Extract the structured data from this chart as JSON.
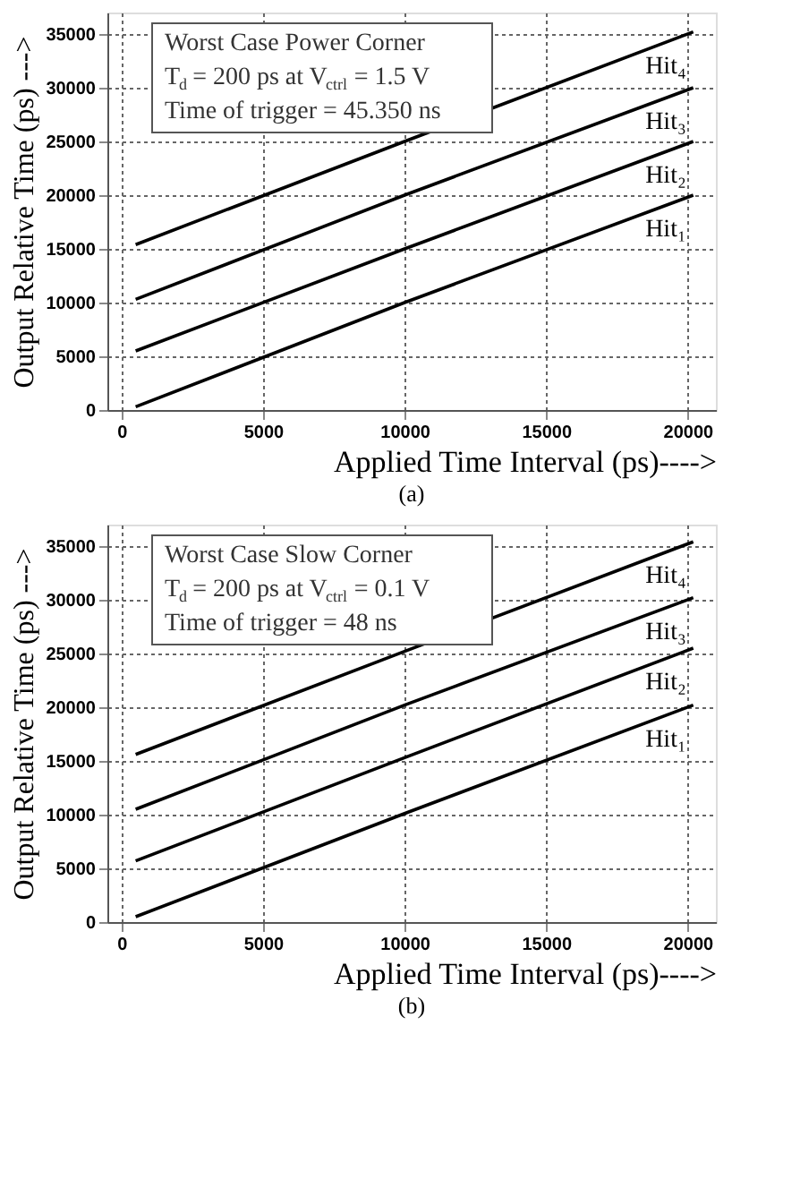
{
  "chart_data": [
    {
      "type": "line",
      "title": "(a)",
      "xlabel": "Applied Time Interval (ps)---->",
      "ylabel": "Output Relative Time (ps) --->",
      "xlim": [
        -500,
        21000
      ],
      "xticks": [
        0,
        5000,
        10000,
        15000,
        20000
      ],
      "ylim": [
        0,
        37000
      ],
      "yticks": [
        0,
        5000,
        10000,
        15000,
        20000,
        25000,
        30000,
        35000
      ],
      "grid": true,
      "legend": false,
      "line_style": "solid",
      "annotations": [
        "Worst Case Power Corner",
        "T$_{d}$ = 200 ps at V$_{ctrl}$ = 1.5 V",
        "Time of trigger = 45.350 ns"
      ],
      "series": [
        {
          "name": "Hit₁",
          "color": "#000000",
          "x": [
            500,
            10000,
            20200
          ],
          "values": [
            300,
            10000,
            20000
          ]
        },
        {
          "name": "Hit₂",
          "color": "#000000",
          "x": [
            500,
            10000,
            20200
          ],
          "values": [
            5500,
            15000,
            25000
          ]
        },
        {
          "name": "Hit₃",
          "color": "#000000",
          "x": [
            500,
            10000,
            20200
          ],
          "values": [
            10300,
            20000,
            30000
          ]
        },
        {
          "name": "Hit₄",
          "color": "#000000",
          "x": [
            500,
            10000,
            20200
          ],
          "values": [
            15400,
            25000,
            35200
          ]
        }
      ]
    },
    {
      "type": "line",
      "title": "(b)",
      "xlabel": "Applied Time Interval (ps)---->",
      "ylabel": "Output Relative Time (ps) --->",
      "xlim": [
        -500,
        21000
      ],
      "xticks": [
        0,
        5000,
        10000,
        15000,
        20000
      ],
      "ylim": [
        0,
        37000
      ],
      "yticks": [
        0,
        5000,
        10000,
        15000,
        20000,
        25000,
        30000,
        35000
      ],
      "grid": true,
      "legend": false,
      "line_style": "solid",
      "annotations": [
        "Worst Case Slow Corner",
        "T$_{d}$ = 200 ps at V$_{ctrl}$ = 0.1 V",
        "Time of trigger = 48 ns"
      ],
      "series": [
        {
          "name": "Hit₁",
          "color": "#000000",
          "x": [
            500,
            10000,
            20200
          ],
          "values": [
            500,
            10100,
            20200
          ]
        },
        {
          "name": "Hit₂",
          "color": "#000000",
          "x": [
            500,
            10000,
            20200
          ],
          "values": [
            5700,
            15300,
            25500
          ]
        },
        {
          "name": "Hit₃",
          "color": "#000000",
          "x": [
            500,
            10000,
            20200
          ],
          "values": [
            10500,
            20200,
            30200
          ]
        },
        {
          "name": "Hit₄",
          "color": "#000000",
          "x": [
            500,
            10000,
            20200
          ],
          "values": [
            15600,
            25200,
            35400
          ]
        }
      ]
    }
  ]
}
